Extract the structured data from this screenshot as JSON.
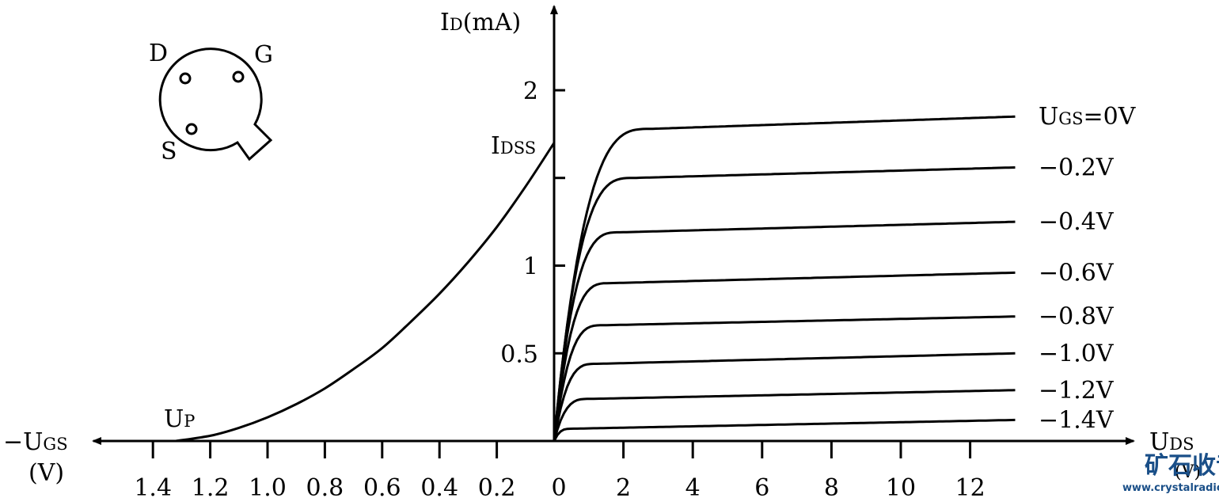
{
  "colors": {
    "ink": "#000000",
    "background": "#ffffff",
    "watermark": "#1a4f88"
  },
  "chart_data": {
    "type": "line",
    "y_axis": {
      "label_main": "I",
      "label_sub": "D",
      "label_unit": "(mA)",
      "ticks": [
        {
          "value": 0.5,
          "label": "0.5"
        },
        {
          "value": 1,
          "label": "1"
        },
        {
          "value": 1.5,
          "label": ""
        },
        {
          "value": 2,
          "label": "2"
        }
      ],
      "idss_main": "I",
      "idss_sub": "DSS",
      "idss_value": 1.7
    },
    "output_axis": {
      "label_main": "U",
      "label_sub": "DS",
      "label_unit": "(V)",
      "range": [
        0,
        14
      ],
      "ticks": [
        {
          "value": 0,
          "label": "0"
        },
        {
          "value": 2,
          "label": "2"
        },
        {
          "value": 4,
          "label": "4"
        },
        {
          "value": 6,
          "label": "6"
        },
        {
          "value": 8,
          "label": "8"
        },
        {
          "value": 10,
          "label": "10"
        },
        {
          "value": 12,
          "label": "12"
        }
      ]
    },
    "transfer_axis": {
      "label_prefix": "−U",
      "label_sub": "GS",
      "label_unit": "(V)",
      "ticks": [
        {
          "value": 0.2,
          "label": "0.2"
        },
        {
          "value": 0.4,
          "label": "0.4"
        },
        {
          "value": 0.6,
          "label": "0.6"
        },
        {
          "value": 0.8,
          "label": "0.8"
        },
        {
          "value": 1.0,
          "label": "1.0"
        },
        {
          "value": 1.2,
          "label": "1.2"
        },
        {
          "value": 1.4,
          "label": "1.4"
        }
      ],
      "pinch_main": "U",
      "pinch_sub": "P",
      "pinch_value": 1.32
    },
    "transfer_curve": {
      "x": [
        0,
        0.1,
        0.2,
        0.3,
        0.4,
        0.5,
        0.6,
        0.7,
        0.8,
        0.9,
        1.0,
        1.1,
        1.2,
        1.32
      ],
      "y": [
        1.7,
        1.45,
        1.22,
        1.02,
        0.84,
        0.68,
        0.53,
        0.41,
        0.3,
        0.21,
        0.135,
        0.075,
        0.03,
        0
      ]
    },
    "output_curves": [
      {
        "vgs_label": "U",
        "vgs_sub": "GS",
        "vgs_text": "=0V",
        "sat": 1.78,
        "sat_end": 1.85,
        "knee": 2.8
      },
      {
        "vgs_label": "−0.2V",
        "sat": 1.5,
        "sat_end": 1.56,
        "knee": 2.3
      },
      {
        "vgs_label": "−0.4V",
        "sat": 1.19,
        "sat_end": 1.25,
        "knee": 1.9
      },
      {
        "vgs_label": "−0.6V",
        "sat": 0.9,
        "sat_end": 0.96,
        "knee": 1.6
      },
      {
        "vgs_label": "−0.8V",
        "sat": 0.66,
        "sat_end": 0.71,
        "knee": 1.4
      },
      {
        "vgs_label": "−1.0V",
        "sat": 0.44,
        "sat_end": 0.5,
        "knee": 1.2
      },
      {
        "vgs_label": "−1.2V",
        "sat": 0.24,
        "sat_end": 0.29,
        "knee": 1.0
      },
      {
        "vgs_label": "−1.4V",
        "sat": 0.07,
        "sat_end": 0.12,
        "knee": 0.5
      }
    ]
  },
  "package": {
    "d_label": "D",
    "g_label": "G",
    "s_label": "S"
  },
  "watermark": {
    "title": "矿石收音机",
    "url": "www.crystalradio.cn"
  }
}
